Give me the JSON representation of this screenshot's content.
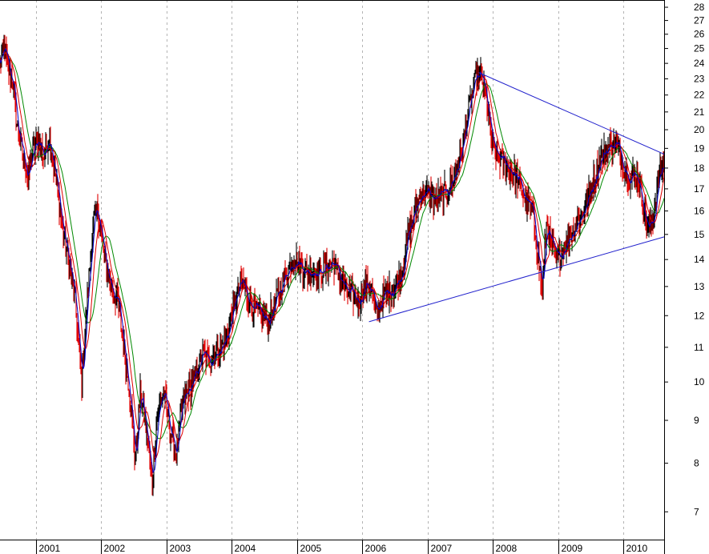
{
  "chart_data": {
    "type": "line",
    "title": "",
    "xlabel": "",
    "ylabel": "",
    "y_scale": "log",
    "ylim": [
      6.5,
      28.5
    ],
    "xlim": [
      2000.45,
      2010.62
    ],
    "grid": "vertical dashed, yearly",
    "x_tick_labels": [
      "2001",
      "2002",
      "2003",
      "2004",
      "2005",
      "2006",
      "2007",
      "2008",
      "2009",
      "2010"
    ],
    "y_tick_labels": [
      "7",
      "8",
      "9",
      "10",
      "11",
      "12",
      "13",
      "14",
      "15",
      "16",
      "17",
      "18",
      "19",
      "20",
      "21",
      "22",
      "23",
      "24",
      "25",
      "26",
      "27",
      "28"
    ],
    "colors": {
      "price_up": "#000000",
      "price_down": "#e00000",
      "ma_short": "#0000cc",
      "ma_mid": "#e00000",
      "ma_long": "#008800",
      "trendline": "#1f1fcc"
    },
    "series": [
      {
        "values": [
          [
            2000.45,
            24.0
          ],
          [
            2000.52,
            25.0
          ],
          [
            2000.58,
            23.5
          ],
          [
            2000.65,
            22.8
          ],
          [
            2000.7,
            20.5
          ],
          [
            2000.78,
            19.0
          ],
          [
            2000.88,
            17.5
          ],
          [
            2000.95,
            18.8
          ],
          [
            2001.05,
            19.5
          ],
          [
            2001.12,
            18.5
          ],
          [
            2001.2,
            19.8
          ],
          [
            2001.28,
            18.0
          ],
          [
            2001.35,
            16.5
          ],
          [
            2001.42,
            15.0
          ],
          [
            2001.5,
            14.0
          ],
          [
            2001.6,
            12.5
          ],
          [
            2001.7,
            10.0
          ],
          [
            2001.78,
            12.5
          ],
          [
            2001.88,
            15.5
          ],
          [
            2001.95,
            16.0
          ],
          [
            2002.05,
            14.0
          ],
          [
            2002.15,
            13.0
          ],
          [
            2002.25,
            12.5
          ],
          [
            2002.35,
            11.0
          ],
          [
            2002.45,
            9.5
          ],
          [
            2002.52,
            8.0
          ],
          [
            2002.6,
            9.8
          ],
          [
            2002.7,
            8.6
          ],
          [
            2002.78,
            7.6
          ],
          [
            2002.85,
            9.0
          ],
          [
            2002.95,
            9.8
          ],
          [
            2003.05,
            8.8
          ],
          [
            2003.15,
            8.2
          ],
          [
            2003.25,
            9.5
          ],
          [
            2003.35,
            9.8
          ],
          [
            2003.45,
            10.2
          ],
          [
            2003.55,
            10.8
          ],
          [
            2003.65,
            10.6
          ],
          [
            2003.75,
            10.8
          ],
          [
            2003.85,
            11.0
          ],
          [
            2003.95,
            11.5
          ],
          [
            2004.05,
            12.5
          ],
          [
            2004.15,
            13.2
          ],
          [
            2004.25,
            12.6
          ],
          [
            2004.35,
            12.2
          ],
          [
            2004.45,
            12.0
          ],
          [
            2004.55,
            11.8
          ],
          [
            2004.65,
            12.3
          ],
          [
            2004.75,
            13.0
          ],
          [
            2004.85,
            13.6
          ],
          [
            2004.95,
            14.0
          ],
          [
            2005.05,
            13.8
          ],
          [
            2005.15,
            13.5
          ],
          [
            2005.25,
            13.6
          ],
          [
            2005.35,
            13.5
          ],
          [
            2005.45,
            13.7
          ],
          [
            2005.55,
            13.9
          ],
          [
            2005.65,
            13.4
          ],
          [
            2005.75,
            12.8
          ],
          [
            2005.85,
            12.7
          ],
          [
            2005.95,
            12.5
          ],
          [
            2006.05,
            13.1
          ],
          [
            2006.15,
            12.9
          ],
          [
            2006.2,
            12.0
          ],
          [
            2006.3,
            12.6
          ],
          [
            2006.4,
            12.8
          ],
          [
            2006.5,
            13.0
          ],
          [
            2006.6,
            13.5
          ],
          [
            2006.7,
            15.0
          ],
          [
            2006.8,
            16.0
          ],
          [
            2006.9,
            16.8
          ],
          [
            2007.0,
            16.8
          ],
          [
            2007.1,
            16.5
          ],
          [
            2007.2,
            16.7
          ],
          [
            2007.3,
            16.9
          ],
          [
            2007.4,
            17.6
          ],
          [
            2007.5,
            18.6
          ],
          [
            2007.6,
            20.5
          ],
          [
            2007.7,
            22.5
          ],
          [
            2007.78,
            23.3
          ],
          [
            2007.85,
            22.8
          ],
          [
            2007.92,
            21.0
          ],
          [
            2008.0,
            19.0
          ],
          [
            2008.1,
            18.5
          ],
          [
            2008.2,
            18.2
          ],
          [
            2008.3,
            17.8
          ],
          [
            2008.4,
            17.3
          ],
          [
            2008.5,
            16.5
          ],
          [
            2008.6,
            16.0
          ],
          [
            2008.7,
            14.0
          ],
          [
            2008.75,
            12.8
          ],
          [
            2008.82,
            15.5
          ],
          [
            2008.9,
            14.5
          ],
          [
            2008.98,
            14.0
          ],
          [
            2009.05,
            14.3
          ],
          [
            2009.15,
            14.8
          ],
          [
            2009.25,
            15.3
          ],
          [
            2009.35,
            15.8
          ],
          [
            2009.45,
            16.5
          ],
          [
            2009.55,
            17.5
          ],
          [
            2009.65,
            18.5
          ],
          [
            2009.75,
            19.0
          ],
          [
            2009.85,
            19.3
          ],
          [
            2009.92,
            19.0
          ],
          [
            2010.0,
            18.2
          ],
          [
            2010.1,
            17.5
          ],
          [
            2010.2,
            17.8
          ],
          [
            2010.3,
            16.2
          ],
          [
            2010.37,
            15.2
          ],
          [
            2010.45,
            15.6
          ],
          [
            2010.52,
            17.2
          ],
          [
            2010.58,
            18.0
          ],
          [
            2010.62,
            18.2
          ]
        ]
      }
    ],
    "trendlines": [
      {
        "from": [
          2007.78,
          23.4
        ],
        "to": [
          2010.62,
          18.7
        ]
      },
      {
        "from": [
          2006.1,
          11.8
        ],
        "to": [
          2010.62,
          14.9
        ]
      }
    ]
  }
}
